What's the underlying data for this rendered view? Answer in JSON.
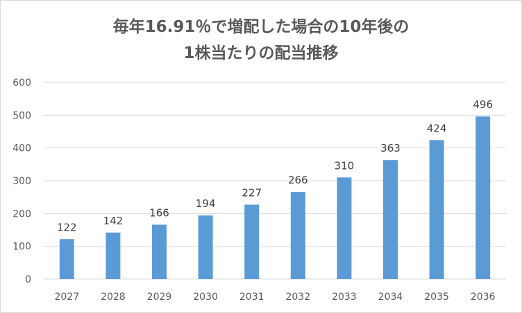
{
  "chart_data": {
    "type": "bar",
    "title_lines": [
      "毎年16.91％で増配した場合の10年後の",
      "1株当たりの配当推移"
    ],
    "categories": [
      "2027",
      "2028",
      "2029",
      "2030",
      "2031",
      "2032",
      "2033",
      "2034",
      "2035",
      "2036"
    ],
    "values": [
      122,
      142,
      166,
      194,
      227,
      266,
      310,
      363,
      424,
      496
    ],
    "y_ticks": [
      0,
      100,
      200,
      300,
      400,
      500,
      600
    ],
    "ylim": [
      0,
      600
    ],
    "xlabel": "",
    "ylabel": "",
    "grid": true,
    "legend": "none",
    "data_labels": true,
    "colors": {
      "bar": "#5b9bd5",
      "grid": "#d9d9d9",
      "text": "#595959"
    }
  }
}
